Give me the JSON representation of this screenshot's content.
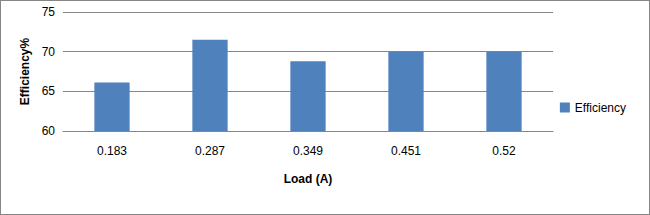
{
  "chart_data": {
    "type": "bar",
    "xlabel": "Load (A)",
    "ylabel": "Efficiency%",
    "categories": [
      "0.183",
      "0.287",
      "0.349",
      "0.451",
      "0.52"
    ],
    "series": [
      {
        "name": "Efficiency",
        "color": "#4f81bd",
        "values": [
          66.1,
          71.5,
          68.8,
          70.0,
          70.0
        ]
      }
    ],
    "ylim": [
      60,
      75
    ],
    "yticks": [
      60,
      65,
      70,
      75
    ],
    "grid": true,
    "legend": "right"
  }
}
